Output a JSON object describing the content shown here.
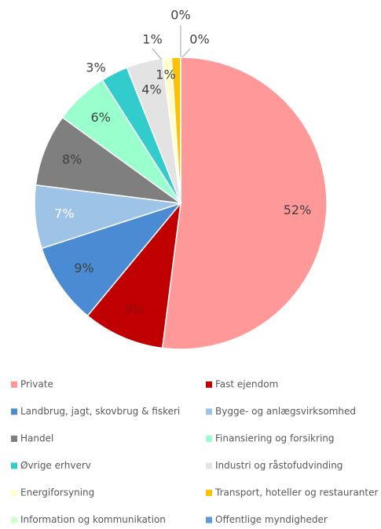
{
  "chart_data": {
    "type": "pie",
    "categories": [
      "Private",
      "Fast ejendom",
      "Landbrug, jagt, skovbrug & fiskeri",
      "Bygge- og anlægsvirksomhed",
      "Handel",
      "Finansiering og forsikring",
      "Øvrige erhverv",
      "Industri og råstofudvinding",
      "Energiforsyning",
      "Transport, hoteller og restauranter",
      "Information og kommunikation",
      "Offentlige myndigheder"
    ],
    "values": [
      52,
      9,
      9,
      7,
      8,
      6,
      3,
      4,
      1,
      1,
      0,
      0
    ],
    "value_labels": [
      "52%",
      "9%",
      "9%",
      "7%",
      "8%",
      "6%",
      "3%",
      "4%",
      "1%",
      "1%",
      "0%",
      "0%"
    ],
    "colors": [
      "#ff9999",
      "#c00000",
      "#4a8bd4",
      "#9dc3e6",
      "#7f7f7f",
      "#99ffcc",
      "#33cccc",
      "#e3e3e3",
      "#ffffcc",
      "#ffc000",
      "#ccffcc",
      "#5b9bd5"
    ],
    "legend": "bottom"
  }
}
